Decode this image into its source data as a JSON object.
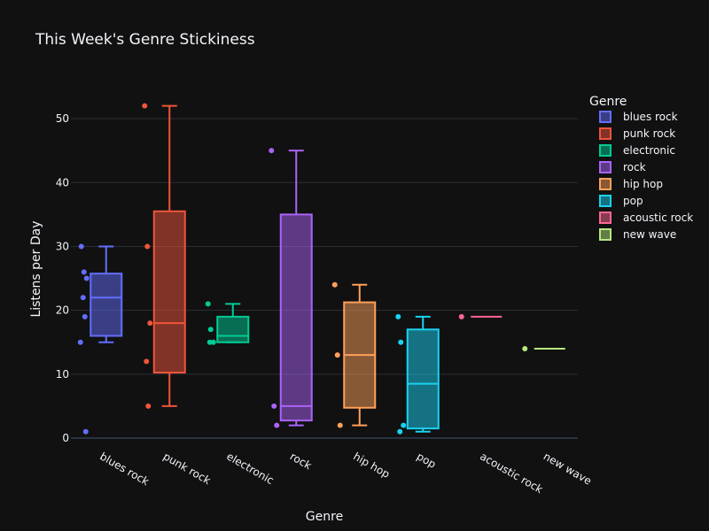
{
  "chart_data": {
    "type": "box",
    "title": "This Week's Genre Stickiness",
    "xlabel": "Genre",
    "ylabel": "Listens per Day",
    "ylim": [
      0,
      55
    ],
    "yticks": [
      0,
      10,
      20,
      30,
      40,
      50
    ],
    "grid": true,
    "legend_title": "Genre",
    "legend_position": "right",
    "categories": [
      "blues rock",
      "punk rock",
      "electronic",
      "rock",
      "hip hop",
      "pop",
      "acoustic rock",
      "new wave"
    ],
    "series": [
      {
        "name": "blues rock",
        "color": "#636efa",
        "points": [
          30,
          26,
          25,
          22,
          19,
          15,
          1
        ],
        "q1": 16,
        "median": 22,
        "q3": 25.75,
        "lowerfence": 15,
        "upperfence": 30
      },
      {
        "name": "punk rock",
        "color": "#ef553b",
        "points": [
          52,
          30,
          18,
          12,
          5
        ],
        "q1": 10.25,
        "median": 18,
        "q3": 35.5,
        "lowerfence": 5,
        "upperfence": 52
      },
      {
        "name": "electronic",
        "color": "#00cc96",
        "points": [
          21,
          17,
          15,
          15
        ],
        "q1": 15,
        "median": 16,
        "q3": 19,
        "lowerfence": 15,
        "upperfence": 21
      },
      {
        "name": "rock",
        "color": "#ab63fa",
        "points": [
          45,
          5,
          2
        ],
        "q1": 2.75,
        "median": 5,
        "q3": 35,
        "lowerfence": 2,
        "upperfence": 45
      },
      {
        "name": "hip hop",
        "color": "#ffa15a",
        "points": [
          24,
          13,
          2
        ],
        "q1": 4.75,
        "median": 13,
        "q3": 21.25,
        "lowerfence": 2,
        "upperfence": 24
      },
      {
        "name": "pop",
        "color": "#19d3f3",
        "points": [
          19,
          15,
          2,
          1
        ],
        "q1": 1.5,
        "median": 8.5,
        "q3": 17,
        "lowerfence": 1,
        "upperfence": 19
      },
      {
        "name": "acoustic rock",
        "color": "#ff6692",
        "points": [
          19
        ],
        "q1": 19,
        "median": 19,
        "q3": 19,
        "lowerfence": 19,
        "upperfence": 19
      },
      {
        "name": "new wave",
        "color": "#b6e880",
        "points": [
          14
        ],
        "q1": 14,
        "median": 14,
        "q3": 14,
        "lowerfence": 14,
        "upperfence": 14
      }
    ]
  }
}
